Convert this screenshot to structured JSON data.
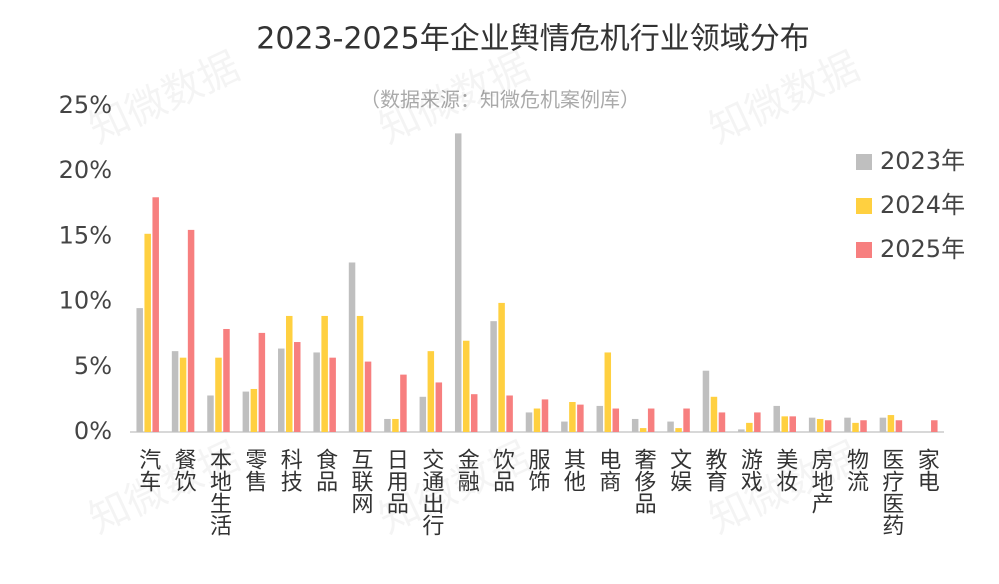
{
  "chart_data": {
    "type": "bar",
    "title": "2023-2025年企业舆情危机行业领域分布",
    "subtitle": "（数据来源：知微危机案例库）",
    "watermark": "知微数据",
    "categories": [
      "汽车",
      "餐饮",
      "本地生活",
      "零售",
      "科技",
      "食品",
      "互联网",
      "日用品",
      "交通出行",
      "金融",
      "饮品",
      "服饰",
      "其他",
      "电商",
      "奢侈品",
      "文娱",
      "教育",
      "游戏",
      "美妆",
      "房地产",
      "物流",
      "医疗医药",
      "家电"
    ],
    "series": [
      {
        "name": "2023年",
        "color": "#bfbfbf",
        "values": [
          9.5,
          6.2,
          2.8,
          3.1,
          6.4,
          6.1,
          13.0,
          1.0,
          2.7,
          22.9,
          8.5,
          1.5,
          0.8,
          2.0,
          1.0,
          0.8,
          4.7,
          0.2,
          2.0,
          1.1,
          1.1,
          1.1,
          0
        ]
      },
      {
        "name": "2024年",
        "color": "#ffd040",
        "values": [
          15.2,
          5.7,
          5.7,
          3.3,
          8.9,
          8.9,
          8.9,
          1.0,
          6.2,
          7.0,
          9.9,
          1.8,
          2.3,
          6.1,
          0.3,
          0.3,
          2.7,
          0.7,
          1.2,
          1.0,
          0.7,
          1.3,
          0
        ]
      },
      {
        "name": "2025年",
        "color": "#f77f7f",
        "values": [
          18.0,
          15.5,
          7.9,
          7.6,
          6.9,
          5.7,
          5.4,
          4.4,
          3.8,
          2.9,
          2.8,
          2.5,
          2.1,
          1.8,
          1.8,
          1.8,
          1.5,
          1.5,
          1.2,
          0.9,
          0.9,
          0.9,
          0.9
        ]
      }
    ],
    "ylim": [
      0,
      25
    ],
    "yticks": [
      {
        "value": 0,
        "label": "0%"
      },
      {
        "value": 5,
        "label": "5%"
      },
      {
        "value": 10,
        "label": "10%"
      },
      {
        "value": 15,
        "label": "15%"
      },
      {
        "value": 20,
        "label": "20%"
      },
      {
        "value": 25,
        "label": "25%"
      }
    ],
    "legend": "right"
  }
}
